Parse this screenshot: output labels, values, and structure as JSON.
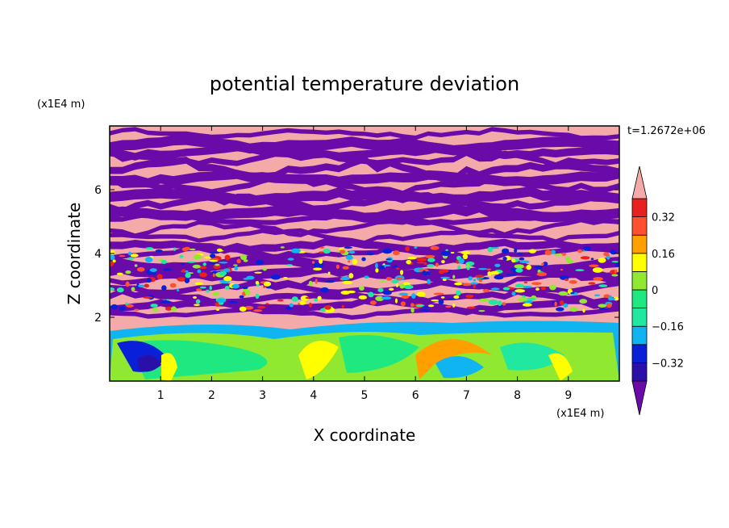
{
  "chart_data": {
    "type": "heatmap",
    "title": "potential temperature deviation",
    "time_label": "t=1.2672e+06",
    "xlabel": "X coordinate",
    "ylabel": "Z coordinate",
    "x_units": "(x1E4 m)",
    "y_units": "(x1E4 m)",
    "xlim": [
      0,
      10
    ],
    "ylim": [
      0,
      8
    ],
    "x_ticks": [
      "1",
      "2",
      "3",
      "4",
      "5",
      "6",
      "7",
      "8",
      "9"
    ],
    "y_ticks": [
      "2",
      "4",
      "6"
    ],
    "colorbar": {
      "levels": [
        -0.4,
        -0.32,
        -0.24,
        -0.16,
        -0.08,
        0,
        0.08,
        0.16,
        0.24,
        0.32,
        0.4
      ],
      "labels": [
        "0.32",
        "0.16",
        "0",
        "−0.16",
        "−0.32"
      ],
      "colors": [
        "#6a0aa8",
        "#2a10a8",
        "#0a20d8",
        "#10b4f0",
        "#20e8a0",
        "#20e880",
        "#90e830",
        "#ffff00",
        "#ffa000",
        "#ff5030",
        "#e82020",
        "#f4aaa8"
      ],
      "extend": "both"
    },
    "field_description_rows": [
      {
        "z": 7.5,
        "pattern": "alternating",
        "dominant": [
          "#f4aaa8",
          "#6a0aa8"
        ]
      },
      {
        "z": 4.5,
        "pattern": "alternating",
        "dominant": [
          "#f4aaa8",
          "#6a0aa8"
        ]
      },
      {
        "z": 2.8,
        "pattern": "mixed",
        "dominant": [
          "#f4aaa8",
          "#6a0aa8",
          "#ff5030",
          "#90e830"
        ]
      },
      {
        "z": 1.0,
        "pattern": "boundary-layer",
        "dominant": [
          "#90e830",
          "#20e880",
          "#ffff00",
          "#10b4f0"
        ]
      }
    ]
  }
}
